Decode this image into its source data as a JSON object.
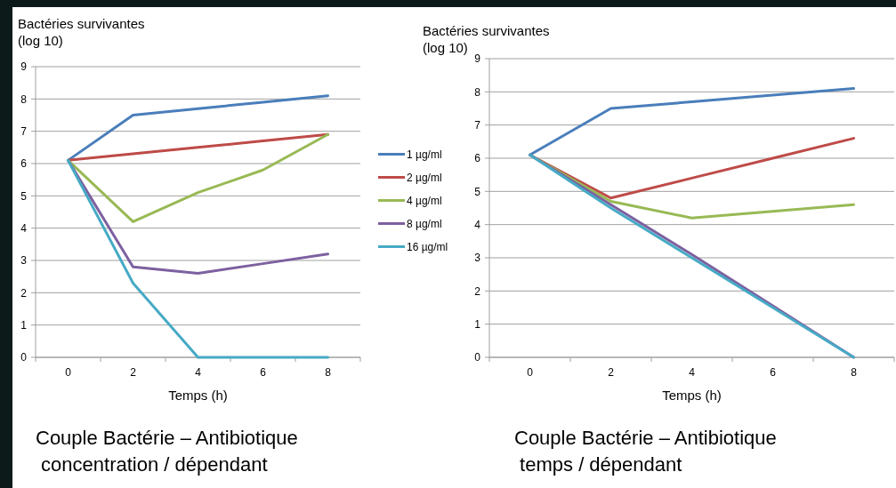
{
  "chart_data": [
    {
      "type": "line",
      "ylabel": "Bactéries survivantes\n(log 10)",
      "xlabel": "Temps (h)",
      "categories": [
        "0",
        "2",
        "4",
        "6",
        "8"
      ],
      "ylim": [
        0,
        9
      ],
      "yticks": [
        0,
        1,
        2,
        3,
        4,
        5,
        6,
        7,
        8,
        9
      ],
      "grid": "y",
      "legend": "right",
      "marker": "none",
      "line_style": "solid",
      "series": [
        {
          "name": "1 µg/ml",
          "color": "#4a7ebb",
          "values": [
            6.1,
            7.5,
            7.7,
            7.9,
            8.1
          ]
        },
        {
          "name": "2 µg/ml",
          "color": "#be4b48",
          "values": [
            6.1,
            6.3,
            6.5,
            6.7,
            6.9
          ]
        },
        {
          "name": "4 µg/ml",
          "color": "#98b954",
          "values": [
            6.1,
            4.2,
            5.1,
            5.8,
            6.9
          ]
        },
        {
          "name": "8 µg/ml",
          "color": "#7d60a0",
          "values": [
            6.1,
            2.8,
            2.6,
            2.9,
            3.2
          ]
        },
        {
          "name": "16 µg/ml",
          "color": "#46aac5",
          "values": [
            6.1,
            2.3,
            0,
            0,
            0
          ]
        }
      ],
      "annotations": [
        "Couple Bactérie – Antibiotique\n concentration / dépendant"
      ]
    },
    {
      "type": "line",
      "ylabel": "Bactéries survivantes\n(log 10)",
      "xlabel": "Temps (h)",
      "categories": [
        "0",
        "2",
        "4",
        "6",
        "8"
      ],
      "ylim": [
        0,
        9
      ],
      "yticks": [
        0,
        1,
        2,
        3,
        4,
        5,
        6,
        7,
        8,
        9
      ],
      "grid": "y",
      "marker": "none",
      "line_style": "solid",
      "series": [
        {
          "color": "#4a7ebb",
          "values": [
            6.1,
            7.5,
            7.7,
            7.9,
            8.1
          ]
        },
        {
          "color": "#be4b48",
          "values": [
            6.1,
            4.8,
            5.4,
            6.0,
            6.6
          ]
        },
        {
          "color": "#98b954",
          "values": [
            6.1,
            4.7,
            4.2,
            4.4,
            4.6
          ]
        },
        {
          "color": "#7d60a0",
          "values": [
            6.1,
            4.6,
            3.1,
            1.55,
            0
          ]
        },
        {
          "color": "#46aac5",
          "values": [
            6.1,
            4.5,
            3.0,
            1.5,
            0
          ]
        }
      ],
      "annotations": [
        "Couple Bactérie – Antibiotique\n temps / dépendant"
      ]
    }
  ]
}
